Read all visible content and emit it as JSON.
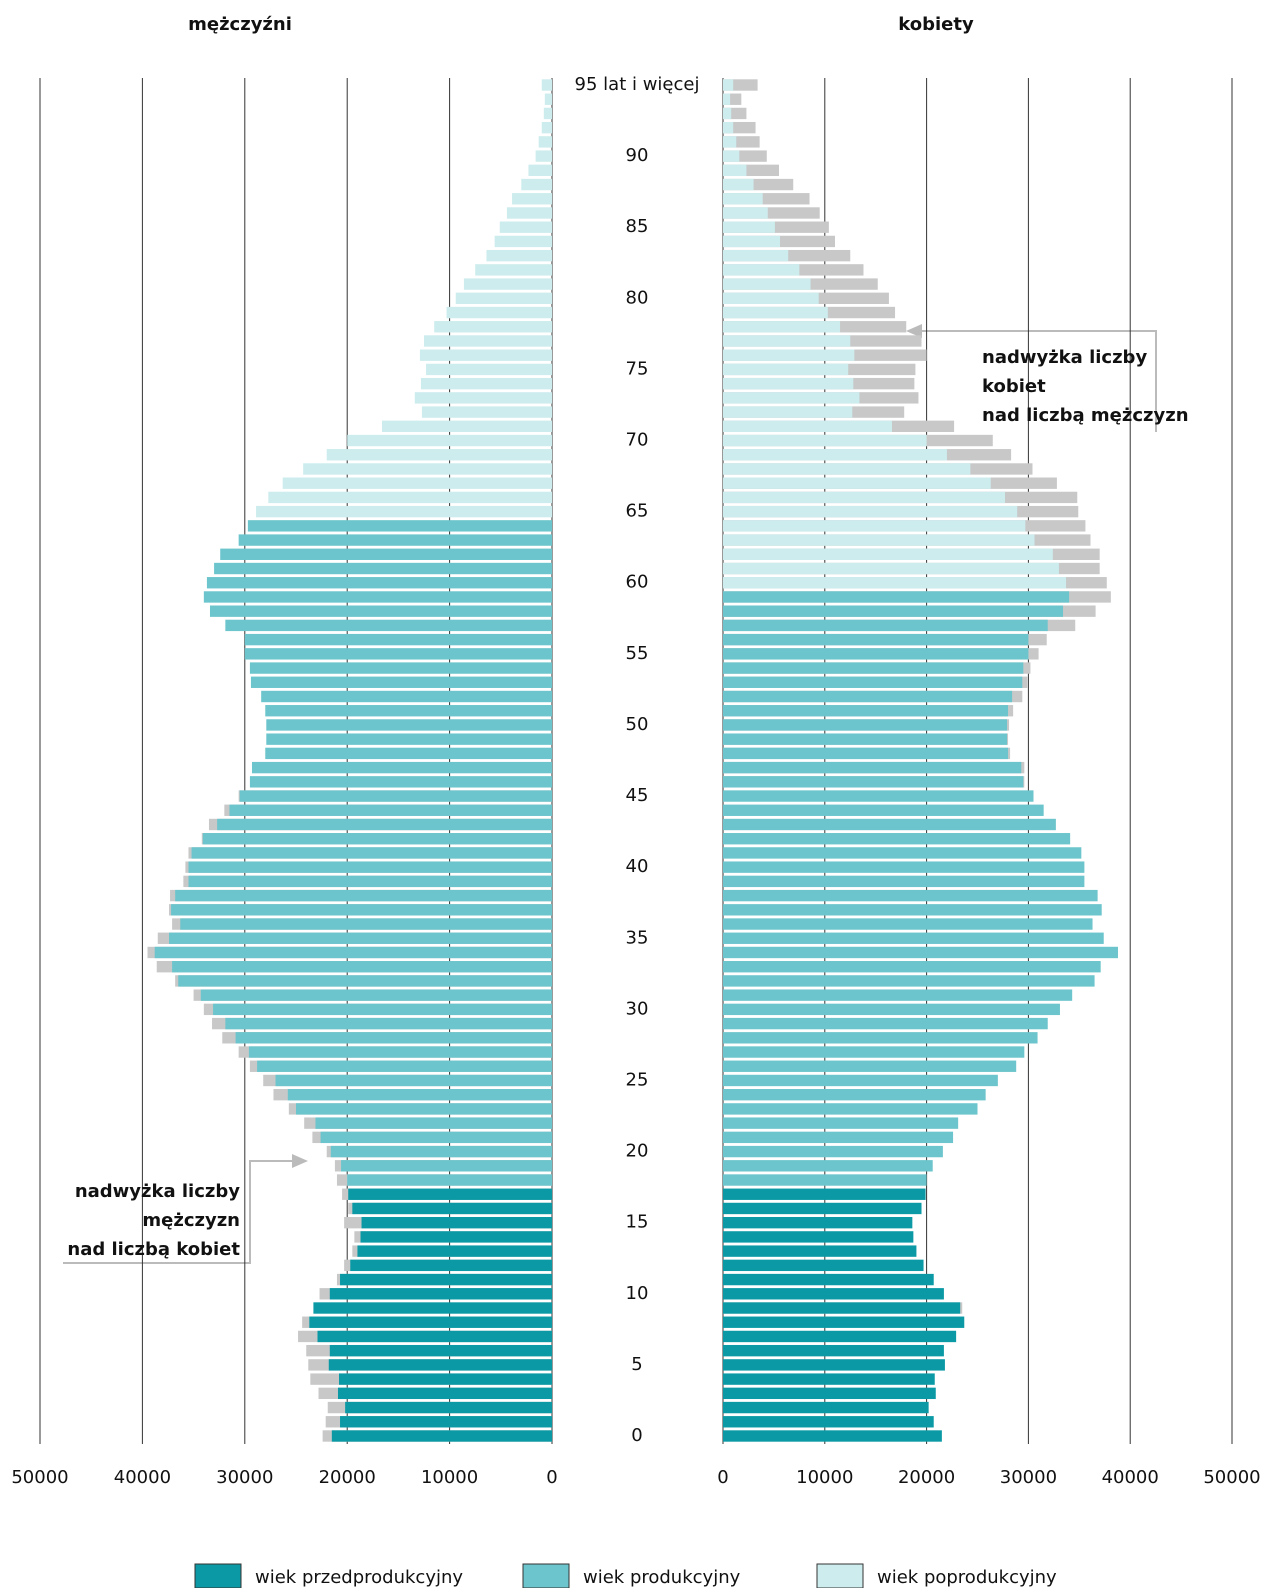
{
  "chart_data": {
    "type": "pyramid",
    "categories": [
      "0",
      null,
      null,
      null,
      null,
      "5",
      null,
      null,
      null,
      null,
      "10",
      null,
      null,
      null,
      null,
      "15",
      null,
      null,
      null,
      null,
      "20",
      null,
      null,
      null,
      null,
      "25",
      null,
      null,
      null,
      null,
      "30",
      null,
      null,
      null,
      null,
      "35",
      null,
      null,
      null,
      null,
      "40",
      null,
      null,
      null,
      null,
      "45",
      null,
      null,
      null,
      null,
      "50",
      null,
      null,
      null,
      null,
      "55",
      null,
      null,
      null,
      null,
      "60",
      null,
      null,
      null,
      null,
      "65",
      null,
      null,
      null,
      null,
      "70",
      null,
      null,
      null,
      null,
      "75",
      null,
      null,
      null,
      null,
      "80",
      null,
      null,
      null,
      null,
      "85",
      null,
      null,
      null,
      null,
      "90",
      null,
      null,
      null,
      null,
      "95 lat i więcej"
    ],
    "surplus_color": "#c8c8c8",
    "series": [
      {
        "name": "mężczyźni",
        "side": "left",
        "xlim": [
          50000,
          0
        ],
        "xticks": [
          50000,
          40000,
          30000,
          20000,
          10000,
          0
        ],
        "values": [
          22400,
          22100,
          21900,
          22800,
          23600,
          23800,
          24000,
          24800,
          24400,
          23300,
          22700,
          21000,
          20300,
          19500,
          19300,
          20300,
          19900,
          20500,
          21000,
          21200,
          22000,
          23400,
          24200,
          25700,
          27200,
          28200,
          29500,
          30600,
          32200,
          33200,
          34000,
          35000,
          36800,
          38600,
          39500,
          38500,
          37100,
          37400,
          37300,
          36000,
          35800,
          35500,
          34200,
          33500,
          32000,
          30600,
          29500,
          29300,
          28000,
          27900,
          27900,
          28000,
          28400,
          29400,
          29500,
          30000,
          30000,
          31900,
          33400,
          34000,
          33700,
          33000,
          32400,
          30600,
          29700,
          28900,
          27700,
          26300,
          24300,
          22000,
          20000,
          16600,
          12700,
          13400,
          12800,
          12300,
          12900,
          12500,
          11500,
          10300,
          9400,
          8600,
          7500,
          6400,
          5600,
          5100,
          4400,
          3900,
          3000,
          2300,
          1600,
          1300,
          1000,
          800,
          700,
          1000
        ],
        "colors": [
          "#0b9aa5",
          "#0b9aa5",
          "#0b9aa5",
          "#0b9aa5",
          "#0b9aa5",
          "#0b9aa5",
          "#0b9aa5",
          "#0b9aa5",
          "#0b9aa5",
          "#0b9aa5",
          "#0b9aa5",
          "#0b9aa5",
          "#0b9aa5",
          "#0b9aa5",
          "#0b9aa5",
          "#0b9aa5",
          "#0b9aa5",
          "#0b9aa5",
          "#6cc5cc",
          "#6cc5cc",
          "#6cc5cc",
          "#6cc5cc",
          "#6cc5cc",
          "#6cc5cc",
          "#6cc5cc",
          "#6cc5cc",
          "#6cc5cc",
          "#6cc5cc",
          "#6cc5cc",
          "#6cc5cc",
          "#6cc5cc",
          "#6cc5cc",
          "#6cc5cc",
          "#6cc5cc",
          "#6cc5cc",
          "#6cc5cc",
          "#6cc5cc",
          "#6cc5cc",
          "#6cc5cc",
          "#6cc5cc",
          "#6cc5cc",
          "#6cc5cc",
          "#6cc5cc",
          "#6cc5cc",
          "#6cc5cc",
          "#6cc5cc",
          "#6cc5cc",
          "#6cc5cc",
          "#6cc5cc",
          "#6cc5cc",
          "#6cc5cc",
          "#6cc5cc",
          "#6cc5cc",
          "#6cc5cc",
          "#6cc5cc",
          "#6cc5cc",
          "#6cc5cc",
          "#6cc5cc",
          "#6cc5cc",
          "#6cc5cc",
          "#6cc5cc",
          "#6cc5cc",
          "#6cc5cc",
          "#6cc5cc",
          "#6cc5cc",
          "#cdeced",
          "#cdeced",
          "#cdeced",
          "#cdeced",
          "#cdeced",
          "#cdeced",
          "#cdeced",
          "#cdeced",
          "#cdeced",
          "#cdeced",
          "#cdeced",
          "#cdeced",
          "#cdeced",
          "#cdeced",
          "#cdeced",
          "#cdeced",
          "#cdeced",
          "#cdeced",
          "#cdeced",
          "#cdeced",
          "#cdeced",
          "#cdeced",
          "#cdeced",
          "#cdeced",
          "#cdeced",
          "#cdeced",
          "#cdeced",
          "#cdeced",
          "#cdeced",
          "#cdeced",
          "#cdeced"
        ]
      },
      {
        "name": "kobiety",
        "side": "right",
        "xlim": [
          0,
          50000
        ],
        "xticks": [
          0,
          10000,
          20000,
          30000,
          40000,
          50000
        ],
        "values": [
          21500,
          20700,
          20200,
          20900,
          20800,
          21800,
          21700,
          22900,
          23700,
          23500,
          21700,
          20700,
          19700,
          19000,
          18700,
          18600,
          19500,
          19900,
          20000,
          20600,
          21600,
          22600,
          23100,
          25000,
          25800,
          27000,
          28800,
          29600,
          30900,
          31900,
          33100,
          34300,
          36500,
          37100,
          38800,
          37400,
          36300,
          37200,
          36800,
          35500,
          35500,
          35200,
          34100,
          32700,
          31500,
          30500,
          29600,
          29600,
          28200,
          28000,
          28100,
          28500,
          29400,
          29900,
          30200,
          31000,
          31800,
          34600,
          36600,
          38100,
          37700,
          37000,
          37000,
          36100,
          35600,
          34900,
          34800,
          32800,
          30400,
          28300,
          26500,
          22700,
          17800,
          19200,
          18800,
          18900,
          20000,
          19500,
          18000,
          16900,
          16300,
          15200,
          13800,
          12500,
          11000,
          10400,
          9500,
          8500,
          6900,
          5500,
          4300,
          3600,
          3200,
          2300,
          1800,
          3400
        ],
        "colors": [
          "#0b9aa5",
          "#0b9aa5",
          "#0b9aa5",
          "#0b9aa5",
          "#0b9aa5",
          "#0b9aa5",
          "#0b9aa5",
          "#0b9aa5",
          "#0b9aa5",
          "#0b9aa5",
          "#0b9aa5",
          "#0b9aa5",
          "#0b9aa5",
          "#0b9aa5",
          "#0b9aa5",
          "#0b9aa5",
          "#0b9aa5",
          "#0b9aa5",
          "#6cc5cc",
          "#6cc5cc",
          "#6cc5cc",
          "#6cc5cc",
          "#6cc5cc",
          "#6cc5cc",
          "#6cc5cc",
          "#6cc5cc",
          "#6cc5cc",
          "#6cc5cc",
          "#6cc5cc",
          "#6cc5cc",
          "#6cc5cc",
          "#6cc5cc",
          "#6cc5cc",
          "#6cc5cc",
          "#6cc5cc",
          "#6cc5cc",
          "#6cc5cc",
          "#6cc5cc",
          "#6cc5cc",
          "#6cc5cc",
          "#6cc5cc",
          "#6cc5cc",
          "#6cc5cc",
          "#6cc5cc",
          "#6cc5cc",
          "#6cc5cc",
          "#6cc5cc",
          "#6cc5cc",
          "#6cc5cc",
          "#6cc5cc",
          "#6cc5cc",
          "#6cc5cc",
          "#6cc5cc",
          "#6cc5cc",
          "#6cc5cc",
          "#6cc5cc",
          "#6cc5cc",
          "#6cc5cc",
          "#6cc5cc",
          "#6cc5cc",
          "#cdeced",
          "#cdeced",
          "#cdeced",
          "#cdeced",
          "#cdeced",
          "#cdeced",
          "#cdeced",
          "#cdeced",
          "#cdeced",
          "#cdeced",
          "#cdeced",
          "#cdeced",
          "#cdeced",
          "#cdeced",
          "#cdeced",
          "#cdeced",
          "#cdeced",
          "#cdeced",
          "#cdeced",
          "#cdeced",
          "#cdeced",
          "#cdeced",
          "#cdeced",
          "#cdeced",
          "#cdeced",
          "#cdeced",
          "#cdeced",
          "#cdeced",
          "#cdeced",
          "#cdeced",
          "#cdeced",
          "#cdeced",
          "#cdeced",
          "#cdeced",
          "#cdeced",
          "#cdeced"
        ]
      }
    ],
    "legend": [
      {
        "name": "wiek przedprodukcyjny",
        "color": "#0b9aa5"
      },
      {
        "name": "wiek produkcyjny",
        "color": "#6cc5cc"
      },
      {
        "name": "wiek poprodukcyjny",
        "color": "#cdeced"
      }
    ],
    "annotations": [
      {
        "lines": [
          "nadwyżka liczby",
          "kobiet",
          "nad liczbą mężczyzn"
        ]
      },
      {
        "lines": [
          "nadwyżka liczby",
          "mężczyzn",
          "nad liczbą kobiet"
        ]
      }
    ]
  }
}
